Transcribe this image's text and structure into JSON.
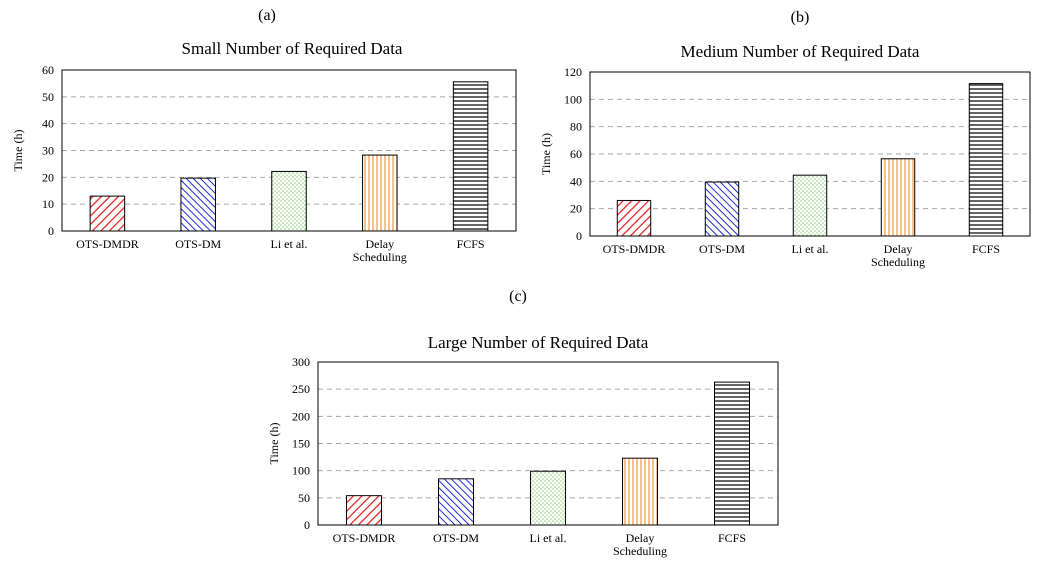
{
  "panel_labels": [
    "(a)",
    "(b)",
    "(c)"
  ],
  "chart_data": [
    {
      "type": "bar",
      "title": "Small Number of Required Data",
      "ylabel": "Time (h)",
      "xlabel": "",
      "categories": [
        "OTS-DMDR",
        "OTS-DM",
        "Li et al.",
        "Delay Scheduling",
        "FCFS"
      ],
      "category_lines": [
        [
          "OTS-DMDR"
        ],
        [
          "OTS-DM"
        ],
        [
          "Li et al."
        ],
        [
          "Delay",
          "Scheduling"
        ],
        [
          "FCFS"
        ]
      ],
      "values": [
        13,
        19.7,
        22.2,
        28.3,
        55.6
      ],
      "ylim": [
        0,
        60
      ],
      "yticks": [
        0,
        10,
        20,
        30,
        40,
        50,
        60
      ],
      "grid": true
    },
    {
      "type": "bar",
      "title": "Medium Number of Required Data",
      "ylabel": "Time (h)",
      "xlabel": "",
      "categories": [
        "OTS-DMDR",
        "OTS-DM",
        "Li et al.",
        "Delay Scheduling",
        "FCFS"
      ],
      "category_lines": [
        [
          "OTS-DMDR"
        ],
        [
          "OTS-DM"
        ],
        [
          "Li et al."
        ],
        [
          "Delay",
          "Scheduling"
        ],
        [
          "FCFS"
        ]
      ],
      "values": [
        26,
        39.5,
        44.5,
        56.5,
        111.5
      ],
      "ylim": [
        0,
        120
      ],
      "yticks": [
        0,
        20,
        40,
        60,
        80,
        100,
        120
      ],
      "grid": true
    },
    {
      "type": "bar",
      "title": "Large Number of Required Data",
      "ylabel": "Time (h)",
      "xlabel": "",
      "categories": [
        "OTS-DMDR",
        "OTS-DM",
        "Li et al.",
        "Delay Scheduling",
        "FCFS"
      ],
      "category_lines": [
        [
          "OTS-DMDR"
        ],
        [
          "OTS-DM"
        ],
        [
          "Li et al."
        ],
        [
          "Delay",
          "Scheduling"
        ],
        [
          "FCFS"
        ]
      ],
      "values": [
        54,
        85,
        99,
        123,
        263
      ],
      "ylim": [
        0,
        300
      ],
      "yticks": [
        0,
        50,
        100,
        150,
        200,
        250,
        300
      ],
      "grid": true
    }
  ],
  "bar_styles": [
    {
      "pattern": "diagonal-up",
      "color": "#e8191b"
    },
    {
      "pattern": "diagonal-down",
      "color": "#1f2bd6"
    },
    {
      "pattern": "dots",
      "color": "#6fbf5a"
    },
    {
      "pattern": "vertical-lines",
      "color": "#f0a050"
    },
    {
      "pattern": "horizontal-lines",
      "color": "#000000"
    }
  ]
}
